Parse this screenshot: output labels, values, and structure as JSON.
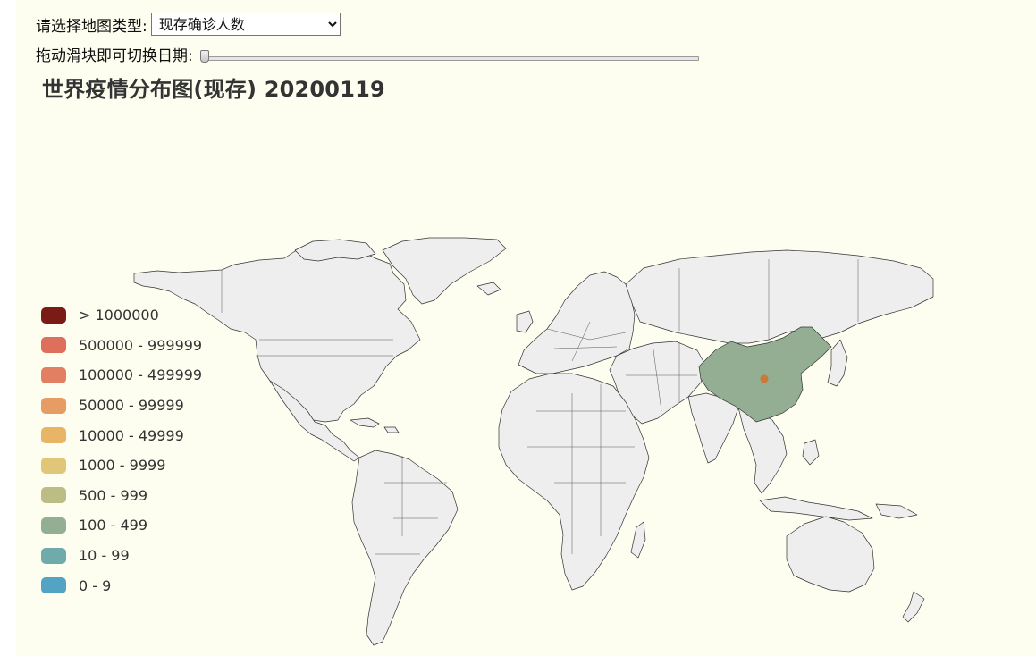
{
  "controls": {
    "map_type_label": "请选择地图类型:",
    "map_type_value": "现存确诊人数",
    "date_slider_label": "拖动滑块即可切换日期:",
    "date_slider_position": 0
  },
  "map": {
    "title": "世界疫情分布图(现存) 20200119",
    "land_color": "#eeeeee",
    "border_color": "#333333",
    "highlighted_regions": [
      {
        "name": "China",
        "bucket": "100 - 499",
        "color": "#93ae92"
      }
    ],
    "marker_color": "#c97a3a"
  },
  "legend": [
    {
      "label": "> 1000000",
      "color": "#7a1b16"
    },
    {
      "label": "500000 - 999999",
      "color": "#de6f5c"
    },
    {
      "label": "100000 - 499999",
      "color": "#e27f62"
    },
    {
      "label": "50000 - 99999",
      "color": "#e69c62"
    },
    {
      "label": "10000 - 49999",
      "color": "#e8b566"
    },
    {
      "label": "1000 - 9999",
      "color": "#e0c677"
    },
    {
      "label": "500 - 999",
      "color": "#bcbd85"
    },
    {
      "label": "100 - 499",
      "color": "#93ae92"
    },
    {
      "label": "10 - 99",
      "color": "#6fabab"
    },
    {
      "label": "0 - 9",
      "color": "#52a3c4"
    }
  ]
}
